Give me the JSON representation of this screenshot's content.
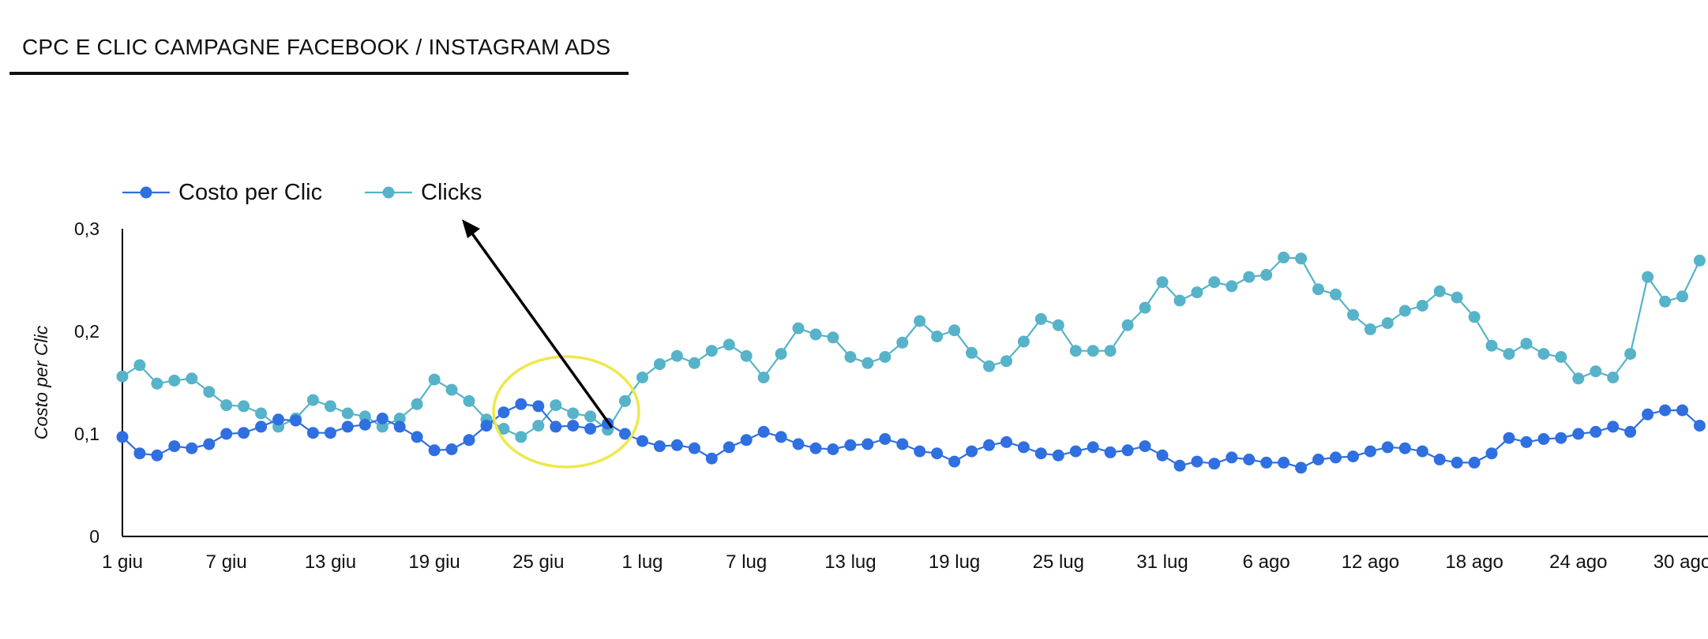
{
  "header": {
    "title": "CPC E CLIC CAMPAGNE FACEBOOK / INSTAGRAM ADS"
  },
  "chart_data": {
    "type": "line",
    "title": "CPC E CLIC CAMPAGNE FACEBOOK / INSTAGRAM ADS",
    "xlabel": "",
    "ylabel": "Costo per Clic",
    "ylim": [
      0,
      0.3
    ],
    "yticks": [
      "0",
      "0,1",
      "0,2",
      "0,3"
    ],
    "x_ticks": [
      "1 giu",
      "7 giu",
      "13 giu",
      "19 giu",
      "25 giu",
      "1 lug",
      "7 lug",
      "13 lug",
      "19 lug",
      "25 lug",
      "31 lug",
      "6 ago",
      "12 ago",
      "18 ago",
      "24 ago",
      "30 ago"
    ],
    "x_start": "1 giu",
    "grid": false,
    "legend": "top-left",
    "annotations": [
      "yellow ellipse around 25 giu – 1 lug",
      "arrow pointing from 30 giu to legend 'Clicks'"
    ],
    "series": [
      {
        "name": "Costo per Clic",
        "color": "#2f6fe0",
        "values": [
          0.097,
          0.081,
          0.079,
          0.088,
          0.086,
          0.09,
          0.1,
          0.101,
          0.107,
          0.114,
          0.113,
          0.101,
          0.101,
          0.107,
          0.109,
          0.115,
          0.107,
          0.097,
          0.084,
          0.085,
          0.094,
          0.108,
          0.121,
          0.129,
          0.127,
          0.107,
          0.108,
          0.105,
          0.11,
          0.1,
          0.093,
          0.088,
          0.089,
          0.086,
          0.076,
          0.087,
          0.094,
          0.102,
          0.097,
          0.09,
          0.086,
          0.085,
          0.089,
          0.09,
          0.095,
          0.09,
          0.083,
          0.081,
          0.073,
          0.083,
          0.089,
          0.092,
          0.087,
          0.081,
          0.079,
          0.083,
          0.087,
          0.082,
          0.084,
          0.088,
          0.079,
          0.069,
          0.073,
          0.071,
          0.077,
          0.075,
          0.072,
          0.072,
          0.067,
          0.075,
          0.077,
          0.078,
          0.083,
          0.087,
          0.086,
          0.083,
          0.075,
          0.072,
          0.072,
          0.081,
          0.096,
          0.092,
          0.095,
          0.096,
          0.1,
          0.102,
          0.107,
          0.102,
          0.119,
          0.123,
          0.123,
          0.108
        ]
      },
      {
        "name": "Clicks",
        "color": "#56b3c9",
        "values": [
          0.156,
          0.167,
          0.149,
          0.152,
          0.154,
          0.141,
          0.128,
          0.127,
          0.12,
          0.107,
          0.115,
          0.133,
          0.127,
          0.12,
          0.117,
          0.107,
          0.115,
          0.129,
          0.153,
          0.143,
          0.132,
          0.114,
          0.105,
          0.097,
          0.108,
          0.128,
          0.12,
          0.117,
          0.104,
          0.132,
          0.155,
          0.168,
          0.176,
          0.169,
          0.181,
          0.187,
          0.176,
          0.155,
          0.178,
          0.203,
          0.197,
          0.194,
          0.175,
          0.169,
          0.175,
          0.189,
          0.21,
          0.195,
          0.201,
          0.179,
          0.166,
          0.171,
          0.19,
          0.212,
          0.206,
          0.181,
          0.181,
          0.181,
          0.206,
          0.223,
          0.248,
          0.23,
          0.238,
          0.248,
          0.244,
          0.253,
          0.255,
          0.272,
          0.271,
          0.241,
          0.236,
          0.216,
          0.202,
          0.208,
          0.22,
          0.225,
          0.239,
          0.233,
          0.214,
          0.186,
          0.178,
          0.188,
          0.178,
          0.175,
          0.154,
          0.161,
          0.155,
          0.178,
          0.253,
          0.229,
          0.234,
          0.269
        ]
      }
    ]
  }
}
